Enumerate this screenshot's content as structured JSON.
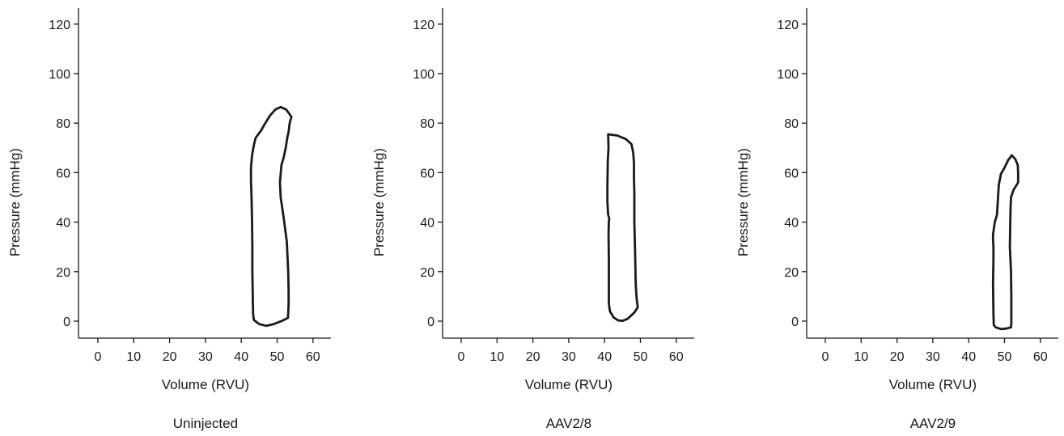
{
  "colors": {
    "line": "#1a1a1a",
    "background": "#ffffff"
  },
  "chart_data": [
    {
      "type": "line",
      "caption": "Uninjected",
      "xlabel": "Volume (RVU)",
      "ylabel": "Pressure (mmHg)",
      "xlim": [
        -5,
        65
      ],
      "ylim": [
        -7,
        127
      ],
      "xticks": [
        "0",
        "10",
        "20",
        "30",
        "40",
        "50",
        "60"
      ],
      "yticks": [
        "0",
        "20",
        "40",
        "60",
        "80",
        "100",
        "120"
      ],
      "grid": false,
      "series": [
        {
          "x": [
            44.0,
            45.5,
            46.5,
            48.0,
            49.5,
            51.0,
            52.5,
            53.3,
            54.0,
            53.5,
            53.2,
            52.9,
            52.4,
            51.8,
            51.2,
            50.8,
            51.0,
            51.8,
            52.7,
            53.1,
            53.2,
            53.2,
            53.1,
            53.0,
            51.5,
            49.0,
            47.0,
            45.0,
            43.5,
            43.3,
            43.2,
            43.1,
            43.1,
            43.0,
            42.9,
            42.8,
            42.7,
            42.7,
            43.0,
            43.5,
            44.0
          ],
          "y": [
            74,
            77,
            79.5,
            83,
            85.5,
            86.5,
            85.5,
            84.0,
            82.5,
            80,
            76.5,
            74.5,
            70,
            66,
            63,
            56,
            50,
            42,
            32,
            20,
            12,
            7,
            3,
            1.3,
            0.2,
            -1.2,
            -1.9,
            -1.2,
            0.5,
            3,
            10,
            20,
            30,
            40,
            48,
            53,
            56,
            62,
            67,
            71,
            74
          ]
        }
      ]
    },
    {
      "type": "line",
      "caption": "AAV2/8",
      "xlabel": "Volume (RVU)",
      "ylabel": "Pressure (mmHg)",
      "xlim": [
        -5,
        65
      ],
      "ylim": [
        -7,
        127
      ],
      "xticks": [
        "0",
        "10",
        "20",
        "30",
        "40",
        "50",
        "60"
      ],
      "yticks": [
        "0",
        "20",
        "40",
        "60",
        "80",
        "100",
        "120"
      ],
      "grid": false,
      "series": [
        {
          "x": [
            41.0,
            43.5,
            46.0,
            47.5,
            48.0,
            48.2,
            48.2,
            48.3,
            48.3,
            48.5,
            48.7,
            48.9,
            49.2,
            49.2,
            48.3,
            46.5,
            45.0,
            43.8,
            42.5,
            41.5,
            41.2,
            41.2,
            41.2,
            41.1,
            41.2,
            41.3,
            41.0,
            40.8,
            40.8,
            40.9,
            41.1,
            41.0
          ],
          "y": [
            75.5,
            75,
            73.5,
            71.5,
            68,
            64,
            58,
            52,
            40,
            28,
            15,
            10,
            6,
            5.5,
            3.5,
            1,
            0.1,
            0.3,
            1.5,
            4,
            7,
            15,
            25,
            35,
            40,
            41.5,
            43,
            48,
            55,
            65,
            70,
            75.5
          ]
        }
      ]
    },
    {
      "type": "line",
      "caption": "AAV2/9",
      "xlabel": "Volume (RVU)",
      "ylabel": "Pressure (mmHg)",
      "xlim": [
        -5,
        65
      ],
      "ylim": [
        -7,
        127
      ],
      "xticks": [
        "0",
        "10",
        "20",
        "30",
        "40",
        "50",
        "60"
      ],
      "yticks": [
        "0",
        "20",
        "40",
        "60",
        "80",
        "100",
        "120"
      ],
      "grid": false,
      "series": [
        {
          "x": [
            52.0,
            53.0,
            53.7,
            53.8,
            53.8,
            52.5,
            51.8,
            51.7,
            51.6,
            51.5,
            51.8,
            51.9,
            51.9,
            51.9,
            51.8,
            50.5,
            49.0,
            47.5,
            47.0,
            46.9,
            46.8,
            46.9,
            46.9,
            46.8,
            46.8,
            47.3,
            47.9,
            48.1,
            48.4,
            49.0,
            50.0,
            51.0,
            52.0
          ],
          "y": [
            67,
            65.5,
            63,
            60,
            56,
            53,
            50,
            46,
            40,
            30,
            20,
            10,
            4,
            -1,
            -2.5,
            -3,
            -3.2,
            -2.5,
            -1.5,
            3,
            15,
            25,
            30,
            33,
            35,
            40,
            43,
            48,
            55,
            59.5,
            62,
            65,
            67
          ]
        }
      ]
    }
  ]
}
